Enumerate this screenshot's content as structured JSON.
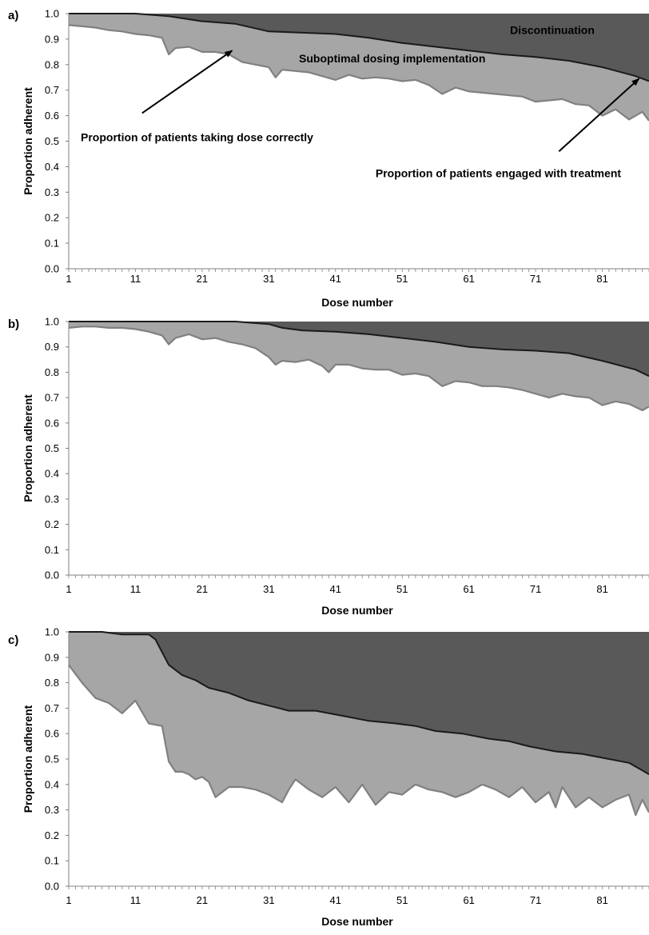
{
  "chart_data": [
    {
      "type": "area",
      "panel_label": "a)",
      "xlabel": "Dose number",
      "ylabel": "Proportion adherent",
      "ylim": [
        0,
        1
      ],
      "xlim": [
        1,
        88
      ],
      "x_ticks": [
        1,
        11,
        21,
        31,
        41,
        51,
        61,
        71,
        81
      ],
      "y_ticks": [
        "0.0",
        "0.1",
        "0.2",
        "0.3",
        "0.4",
        "0.5",
        "0.6",
        "0.7",
        "0.8",
        "0.9",
        "1.0"
      ],
      "grid": false,
      "colors": {
        "discontinuation": "#595959",
        "suboptimal": "#a6a6a6",
        "engaged_line": "#1a1a1a",
        "correct_line": "#808080"
      },
      "series": [
        {
          "name": "Proportion of patients engaged with treatment",
          "x": [
            1,
            6,
            11,
            16,
            21,
            26,
            31,
            36,
            41,
            46,
            51,
            56,
            61,
            66,
            71,
            76,
            81,
            86,
            88
          ],
          "y": [
            1.0,
            1.0,
            1.0,
            0.99,
            0.97,
            0.96,
            0.93,
            0.925,
            0.92,
            0.905,
            0.885,
            0.87,
            0.855,
            0.84,
            0.83,
            0.815,
            0.79,
            0.755,
            0.735
          ]
        },
        {
          "name": "Proportion of patients taking dose correctly",
          "x": [
            1,
            3,
            5,
            7,
            9,
            11,
            13,
            15,
            16,
            17,
            19,
            21,
            23,
            25,
            27,
            29,
            31,
            32,
            33,
            35,
            37,
            39,
            41,
            43,
            45,
            47,
            49,
            51,
            53,
            55,
            57,
            59,
            61,
            63,
            65,
            67,
            69,
            71,
            73,
            75,
            77,
            79,
            81,
            83,
            85,
            87,
            88
          ],
          "y": [
            0.955,
            0.95,
            0.945,
            0.935,
            0.93,
            0.92,
            0.915,
            0.905,
            0.84,
            0.865,
            0.87,
            0.85,
            0.85,
            0.84,
            0.81,
            0.8,
            0.79,
            0.75,
            0.78,
            0.775,
            0.77,
            0.755,
            0.74,
            0.76,
            0.745,
            0.75,
            0.745,
            0.735,
            0.74,
            0.72,
            0.685,
            0.71,
            0.695,
            0.69,
            0.685,
            0.68,
            0.675,
            0.655,
            0.66,
            0.665,
            0.645,
            0.64,
            0.6,
            0.625,
            0.585,
            0.615,
            0.58
          ]
        }
      ],
      "annotations": [
        {
          "text": "Discontinuation",
          "x": 73.5,
          "y": 0.935
        },
        {
          "text": "Suboptimal dosing implementation",
          "x": 49.5,
          "y": 0.825
        },
        {
          "text": "Proportion of patients taking dose correctly",
          "x": 2.8,
          "y": 0.515,
          "arrow_to": {
            "x": 25.5,
            "y": 0.855
          }
        },
        {
          "text": "Proportion of patients engaged with treatment",
          "x": 47,
          "y": 0.375,
          "arrow_from": {
            "x": 74.5,
            "y": 0.46
          },
          "arrow_to": {
            "x": 86.5,
            "y": 0.745
          }
        }
      ]
    },
    {
      "type": "area",
      "panel_label": "b)",
      "xlabel": "Dose number",
      "ylabel": "Proportion adherent",
      "ylim": [
        0,
        1
      ],
      "xlim": [
        1,
        88
      ],
      "x_ticks": [
        1,
        11,
        21,
        31,
        41,
        51,
        61,
        71,
        81
      ],
      "y_ticks": [
        "0.0",
        "0.1",
        "0.2",
        "0.3",
        "0.4",
        "0.5",
        "0.6",
        "0.7",
        "0.8",
        "0.9",
        "1.0"
      ],
      "grid": false,
      "colors": {
        "discontinuation": "#595959",
        "suboptimal": "#a6a6a6",
        "engaged_line": "#1a1a1a",
        "correct_line": "#808080"
      },
      "series": [
        {
          "name": "Proportion of patients engaged with treatment",
          "x": [
            1,
            6,
            11,
            16,
            21,
            26,
            31,
            33,
            36,
            41,
            46,
            51,
            56,
            61,
            66,
            71,
            76,
            81,
            86,
            88
          ],
          "y": [
            1.0,
            1.0,
            1.0,
            1.0,
            1.0,
            1.0,
            0.99,
            0.975,
            0.965,
            0.96,
            0.95,
            0.935,
            0.92,
            0.9,
            0.89,
            0.885,
            0.875,
            0.845,
            0.81,
            0.785
          ]
        },
        {
          "name": "Proportion of patients taking dose correctly",
          "x": [
            1,
            3,
            5,
            7,
            9,
            11,
            13,
            15,
            16,
            17,
            19,
            21,
            23,
            25,
            27,
            29,
            31,
            32,
            33,
            35,
            37,
            39,
            40,
            41,
            43,
            45,
            47,
            49,
            51,
            53,
            55,
            57,
            59,
            61,
            63,
            65,
            67,
            69,
            71,
            73,
            75,
            77,
            79,
            81,
            83,
            85,
            87,
            88
          ],
          "y": [
            0.975,
            0.98,
            0.98,
            0.975,
            0.975,
            0.97,
            0.96,
            0.945,
            0.91,
            0.935,
            0.95,
            0.93,
            0.935,
            0.92,
            0.91,
            0.895,
            0.86,
            0.83,
            0.845,
            0.84,
            0.85,
            0.825,
            0.8,
            0.83,
            0.83,
            0.815,
            0.81,
            0.81,
            0.79,
            0.795,
            0.785,
            0.745,
            0.765,
            0.76,
            0.745,
            0.745,
            0.74,
            0.73,
            0.715,
            0.7,
            0.715,
            0.705,
            0.7,
            0.67,
            0.685,
            0.675,
            0.65,
            0.665
          ]
        }
      ],
      "annotations": []
    },
    {
      "type": "area",
      "panel_label": "c)",
      "xlabel": "Dose number",
      "ylabel": "Proportion adherent",
      "ylim": [
        0,
        1
      ],
      "xlim": [
        1,
        88
      ],
      "x_ticks": [
        1,
        11,
        21,
        31,
        41,
        51,
        61,
        71,
        81
      ],
      "y_ticks": [
        "0.0",
        "0.1",
        "0.2",
        "0.3",
        "0.4",
        "0.5",
        "0.6",
        "0.7",
        "0.8",
        "0.9",
        "1.0"
      ],
      "grid": false,
      "colors": {
        "discontinuation": "#595959",
        "suboptimal": "#a6a6a6",
        "engaged_line": "#1a1a1a",
        "correct_line": "#808080"
      },
      "series": [
        {
          "name": "Proportion of patients engaged with treatment",
          "x": [
            1,
            6,
            9,
            13,
            14,
            15,
            16,
            18,
            20,
            22,
            25,
            28,
            31,
            34,
            38,
            42,
            46,
            50,
            53,
            56,
            60,
            64,
            67,
            70,
            74,
            78,
            82,
            85,
            87,
            88
          ],
          "y": [
            1.0,
            1.0,
            0.99,
            0.99,
            0.97,
            0.92,
            0.87,
            0.83,
            0.81,
            0.78,
            0.76,
            0.73,
            0.71,
            0.69,
            0.69,
            0.67,
            0.65,
            0.64,
            0.63,
            0.61,
            0.6,
            0.58,
            0.57,
            0.55,
            0.53,
            0.52,
            0.5,
            0.485,
            0.455,
            0.44
          ]
        },
        {
          "name": "Proportion of patients taking dose correctly",
          "x": [
            1,
            3,
            5,
            7,
            9,
            11,
            13,
            15,
            16,
            17,
            18,
            19,
            20,
            21,
            22,
            23,
            25,
            27,
            29,
            31,
            33,
            34,
            35,
            37,
            39,
            41,
            43,
            45,
            47,
            49,
            51,
            53,
            55,
            57,
            59,
            61,
            63,
            65,
            67,
            69,
            71,
            73,
            74,
            75,
            77,
            79,
            81,
            83,
            85,
            86,
            87,
            88
          ],
          "y": [
            0.87,
            0.8,
            0.74,
            0.72,
            0.68,
            0.73,
            0.64,
            0.63,
            0.49,
            0.45,
            0.45,
            0.44,
            0.42,
            0.43,
            0.41,
            0.35,
            0.39,
            0.39,
            0.38,
            0.36,
            0.33,
            0.38,
            0.42,
            0.38,
            0.35,
            0.39,
            0.33,
            0.4,
            0.32,
            0.37,
            0.36,
            0.4,
            0.38,
            0.37,
            0.35,
            0.37,
            0.4,
            0.38,
            0.35,
            0.39,
            0.33,
            0.37,
            0.31,
            0.39,
            0.31,
            0.35,
            0.31,
            0.34,
            0.36,
            0.28,
            0.34,
            0.29
          ]
        }
      ],
      "annotations": []
    }
  ]
}
